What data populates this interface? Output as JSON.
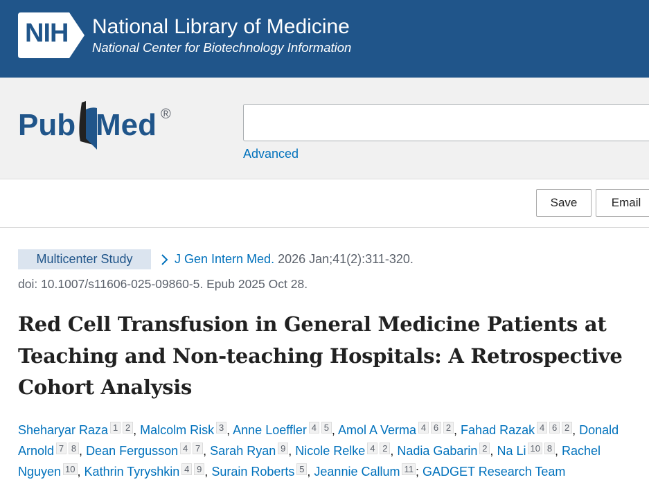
{
  "header": {
    "nih_logo": "NIH",
    "title": "National Library of Medicine",
    "subtitle": "National Center for Biotechnology Information"
  },
  "search": {
    "logo": {
      "left": "Pub",
      "right": "Med",
      "mark": "®"
    },
    "advanced": "Advanced"
  },
  "actions": [
    "Save",
    "Email"
  ],
  "article": {
    "publication_type": "Multicenter Study",
    "journal": "J Gen Intern Med.",
    "citation": "2026 Jan;41(2):311-320.",
    "doi": "doi: 10.1007/s11606-025-09860-5. Epub 2025 Oct 28.",
    "title": "Red Cell Transfusion in General Medicine Patients at Teaching and Non-teaching Hospitals: A Retrospective Cohort Analysis",
    "authors": [
      {
        "name": "Sheharyar Raza",
        "affiliations": [
          1,
          2
        ],
        "punct": ","
      },
      {
        "name": "Malcolm Risk",
        "affiliations": [
          3
        ],
        "punct": ","
      },
      {
        "name": "Anne Loeffler",
        "affiliations": [
          4,
          5
        ],
        "punct": ","
      },
      {
        "name": "Amol A Verma",
        "affiliations": [
          4,
          6,
          2
        ],
        "punct": ","
      },
      {
        "name": "Fahad Razak",
        "affiliations": [
          4,
          6,
          2
        ],
        "punct": ","
      },
      {
        "name": "Donald Arnold",
        "affiliations": [
          7,
          8
        ],
        "punct": ","
      },
      {
        "name": "Dean Fergusson",
        "affiliations": [
          4,
          7
        ],
        "punct": ","
      },
      {
        "name": "Sarah Ryan",
        "affiliations": [
          9
        ],
        "punct": ","
      },
      {
        "name": "Nicole Relke",
        "affiliations": [
          4,
          2
        ],
        "punct": ","
      },
      {
        "name": "Nadia Gabarin",
        "affiliations": [
          2
        ],
        "punct": ","
      },
      {
        "name": "Na Li",
        "affiliations": [
          10,
          8
        ],
        "punct": ","
      },
      {
        "name": "Rachel Nguyen",
        "affiliations": [
          10
        ],
        "punct": ","
      },
      {
        "name": "Kathrin Tyryshkin",
        "affiliations": [
          4,
          9
        ],
        "punct": ","
      },
      {
        "name": "Surain Roberts",
        "affiliations": [
          5
        ],
        "punct": ","
      },
      {
        "name": "Jeannie Callum",
        "affiliations": [
          11
        ],
        "punct": ";"
      },
      {
        "name": "GADGET Research Team",
        "affiliations": []
      }
    ]
  }
}
